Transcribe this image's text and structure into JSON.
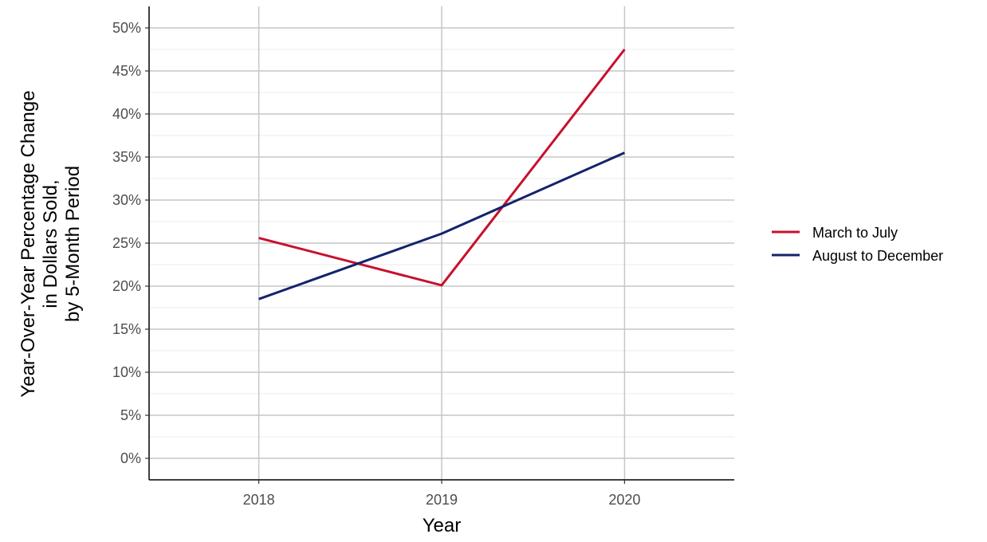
{
  "chart_data": {
    "type": "line",
    "title": "",
    "xlabel": "Year",
    "ylabel_lines": [
      "Year-Over-Year Percentage Change",
      "in Dollars Sold,",
      "by 5-Month Period"
    ],
    "x": [
      2018,
      2019,
      2020
    ],
    "x_tick_labels": [
      "2018",
      "2019",
      "2020"
    ],
    "xlim": [
      2017.4,
      2020.6
    ],
    "y_tick_values": [
      0,
      5,
      10,
      15,
      20,
      25,
      30,
      35,
      40,
      45,
      50
    ],
    "y_tick_labels": [
      "0%",
      "5%",
      "10%",
      "15%",
      "20%",
      "25%",
      "30%",
      "35%",
      "40%",
      "45%",
      "50%"
    ],
    "ylim": [
      -2.5,
      52.5
    ],
    "ylabel_unit": "percent",
    "grid": true,
    "legend_position": "right",
    "series": [
      {
        "name": "March to July",
        "color": "#c8102e",
        "values": [
          25.6,
          20.1,
          47.5
        ]
      },
      {
        "name": "August to December",
        "color": "#14236b",
        "values": [
          18.5,
          26.1,
          35.5
        ]
      }
    ]
  }
}
